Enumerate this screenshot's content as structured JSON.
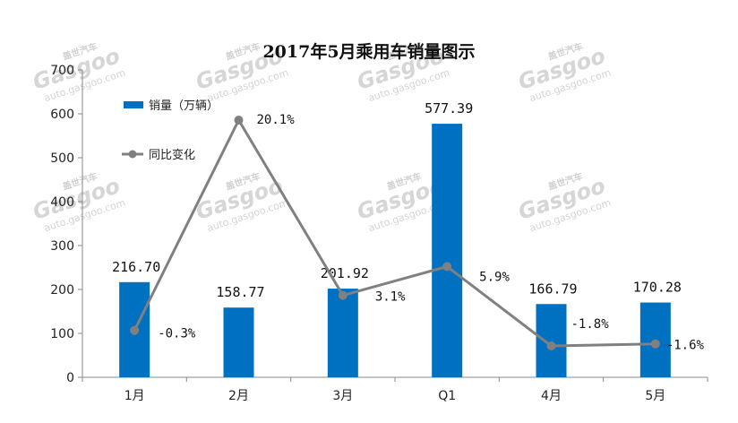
{
  "chart_data": {
    "type": "bar",
    "title": "2017年5月乘用车销量图示",
    "categories": [
      "1月",
      "2月",
      "3月",
      "Q1",
      "4月",
      "5月"
    ],
    "ylim": [
      0,
      700
    ],
    "yticks": [
      "0",
      "100",
      "200",
      "300",
      "400",
      "500",
      "600",
      "700"
    ],
    "grid": false,
    "legend_position": "top-left",
    "series": [
      {
        "name": "销量（万辆）",
        "kind": "bar",
        "color": "#0070C0",
        "values": [
          216.7,
          158.77,
          201.92,
          577.39,
          166.79,
          170.28
        ],
        "labels": [
          "216.70",
          "158.77",
          "201.92",
          "577.39",
          "166.79",
          "170.28"
        ]
      },
      {
        "name": "同比变化",
        "kind": "line",
        "color": "#808080",
        "values": [
          -0.3,
          20.1,
          3.1,
          5.9,
          -1.8,
          -1.6
        ],
        "labels": [
          "-0.3%",
          "20.1%",
          "3.1%",
          "5.9%",
          "-1.8%",
          "-1.6%"
        ]
      }
    ]
  },
  "watermark": {
    "brand_cn": "盖世汽车",
    "logo": "Gasgoo",
    "url": "auto.gasgoo.com"
  }
}
